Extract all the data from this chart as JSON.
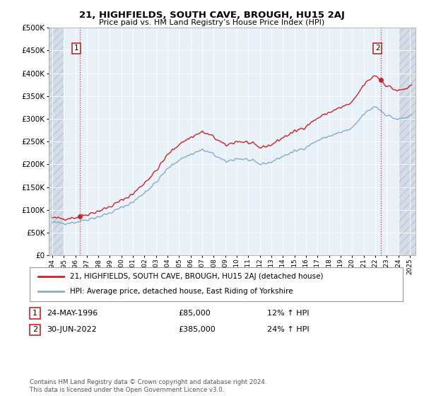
{
  "title": "21, HIGHFIELDS, SOUTH CAVE, BROUGH, HU15 2AJ",
  "subtitle": "Price paid vs. HM Land Registry’s House Price Index (HPI)",
  "ylim": [
    0,
    500000
  ],
  "yticks": [
    0,
    50000,
    100000,
    150000,
    200000,
    250000,
    300000,
    350000,
    400000,
    450000,
    500000
  ],
  "xlim_start": 1993.7,
  "xlim_end": 2025.5,
  "plot_bg": "#e8f0f8",
  "red_line_color": "#cc2222",
  "blue_line_color": "#88aacc",
  "purchase1": {
    "year": 1996.4,
    "price": 85000,
    "display": "24-MAY-1996",
    "price_str": "£85,000",
    "hpi_str": "12% ↑ HPI"
  },
  "purchase2": {
    "year": 2022.5,
    "price": 385000,
    "display": "30-JUN-2022",
    "price_str": "£385,000",
    "hpi_str": "24% ↑ HPI"
  },
  "legend_line1": "21, HIGHFIELDS, SOUTH CAVE, BROUGH, HU15 2AJ (detached house)",
  "legend_line2": "HPI: Average price, detached house, East Riding of Yorkshire",
  "footer": "Contains HM Land Registry data © Crown copyright and database right 2024.\nThis data is licensed under the Open Government Licence v3.0.",
  "hpi_monthly_years": [
    1994.0,
    1994.083,
    1994.167,
    1994.25,
    1994.333,
    1994.417,
    1994.5,
    1994.583,
    1994.667,
    1994.75,
    1994.833,
    1994.917,
    1995.0,
    1995.083,
    1995.167,
    1995.25,
    1995.333,
    1995.417,
    1995.5,
    1995.583,
    1995.667,
    1995.75,
    1995.833,
    1995.917,
    1996.0,
    1996.083,
    1996.167,
    1996.25,
    1996.333,
    1996.417,
    1996.5,
    1996.583,
    1996.667,
    1996.75,
    1996.833,
    1996.917,
    1997.0,
    1997.083,
    1997.167,
    1997.25,
    1997.333,
    1997.417,
    1997.5,
    1997.583,
    1997.667,
    1997.75,
    1997.833,
    1997.917,
    1998.0,
    1998.083,
    1998.167,
    1998.25,
    1998.333,
    1998.417,
    1998.5,
    1998.583,
    1998.667,
    1998.75,
    1998.833,
    1998.917,
    1999.0,
    1999.083,
    1999.167,
    1999.25,
    1999.333,
    1999.417,
    1999.5,
    1999.583,
    1999.667,
    1999.75,
    1999.833,
    1999.917,
    2000.0,
    2000.083,
    2000.167,
    2000.25,
    2000.333,
    2000.417,
    2000.5,
    2000.583,
    2000.667,
    2000.75,
    2000.833,
    2000.917,
    2001.0,
    2001.083,
    2001.167,
    2001.25,
    2001.333,
    2001.417,
    2001.5,
    2001.583,
    2001.667,
    2001.75,
    2001.833,
    2001.917,
    2002.0,
    2002.083,
    2002.167,
    2002.25,
    2002.333,
    2002.417,
    2002.5,
    2002.583,
    2002.667,
    2002.75,
    2002.833,
    2002.917,
    2003.0,
    2003.083,
    2003.167,
    2003.25,
    2003.333,
    2003.417,
    2003.5,
    2003.583,
    2003.667,
    2003.75,
    2003.833,
    2003.917,
    2004.0,
    2004.083,
    2004.167,
    2004.25,
    2004.333,
    2004.417,
    2004.5,
    2004.583,
    2004.667,
    2004.75,
    2004.833,
    2004.917,
    2005.0,
    2005.083,
    2005.167,
    2005.25,
    2005.333,
    2005.417,
    2005.5,
    2005.583,
    2005.667,
    2005.75,
    2005.833,
    2005.917,
    2006.0,
    2006.083,
    2006.167,
    2006.25,
    2006.333,
    2006.417,
    2006.5,
    2006.583,
    2006.667,
    2006.75,
    2006.833,
    2006.917,
    2007.0,
    2007.083,
    2007.167,
    2007.25,
    2007.333,
    2007.417,
    2007.5,
    2007.583,
    2007.667,
    2007.75,
    2007.833,
    2007.917,
    2008.0,
    2008.083,
    2008.167,
    2008.25,
    2008.333,
    2008.417,
    2008.5,
    2008.583,
    2008.667,
    2008.75,
    2008.833,
    2008.917,
    2009.0,
    2009.083,
    2009.167,
    2009.25,
    2009.333,
    2009.417,
    2009.5,
    2009.583,
    2009.667,
    2009.75,
    2009.833,
    2009.917,
    2010.0,
    2010.083,
    2010.167,
    2010.25,
    2010.333,
    2010.417,
    2010.5,
    2010.583,
    2010.667,
    2010.75,
    2010.833,
    2010.917,
    2011.0,
    2011.083,
    2011.167,
    2011.25,
    2011.333,
    2011.417,
    2011.5,
    2011.583,
    2011.667,
    2011.75,
    2011.833,
    2011.917,
    2012.0,
    2012.083,
    2012.167,
    2012.25,
    2012.333,
    2012.417,
    2012.5,
    2012.583,
    2012.667,
    2012.75,
    2012.833,
    2012.917,
    2013.0,
    2013.083,
    2013.167,
    2013.25,
    2013.333,
    2013.417,
    2013.5,
    2013.583,
    2013.667,
    2013.75,
    2013.833,
    2013.917,
    2014.0,
    2014.083,
    2014.167,
    2014.25,
    2014.333,
    2014.417,
    2014.5,
    2014.583,
    2014.667,
    2014.75,
    2014.833,
    2014.917,
    2015.0,
    2015.083,
    2015.167,
    2015.25,
    2015.333,
    2015.417,
    2015.5,
    2015.583,
    2015.667,
    2015.75,
    2015.833,
    2015.917,
    2016.0,
    2016.083,
    2016.167,
    2016.25,
    2016.333,
    2016.417,
    2016.5,
    2016.583,
    2016.667,
    2016.75,
    2016.833,
    2016.917,
    2017.0,
    2017.083,
    2017.167,
    2017.25,
    2017.333,
    2017.417,
    2017.5,
    2017.583,
    2017.667,
    2017.75,
    2017.833,
    2017.917,
    2018.0,
    2018.083,
    2018.167,
    2018.25,
    2018.333,
    2018.417,
    2018.5,
    2018.583,
    2018.667,
    2018.75,
    2018.833,
    2018.917,
    2019.0,
    2019.083,
    2019.167,
    2019.25,
    2019.333,
    2019.417,
    2019.5,
    2019.583,
    2019.667,
    2019.75,
    2019.833,
    2019.917,
    2020.0,
    2020.083,
    2020.167,
    2020.25,
    2020.333,
    2020.417,
    2020.5,
    2020.583,
    2020.667,
    2020.75,
    2020.833,
    2020.917,
    2021.0,
    2021.083,
    2021.167,
    2021.25,
    2021.333,
    2021.417,
    2021.5,
    2021.583,
    2021.667,
    2021.75,
    2021.833,
    2021.917,
    2022.0,
    2022.083,
    2022.167,
    2022.25,
    2022.333,
    2022.417,
    2022.5,
    2022.583,
    2022.667,
    2022.75,
    2022.833,
    2022.917,
    2023.0,
    2023.083,
    2023.167,
    2023.25,
    2023.333,
    2023.417,
    2023.5,
    2023.583,
    2023.667,
    2023.75,
    2023.833,
    2023.917,
    2024.0,
    2024.083,
    2024.167,
    2024.25,
    2024.333,
    2024.417,
    2024.5,
    2024.583,
    2024.667,
    2024.75,
    2024.833,
    2024.917,
    2025.0,
    2025.083,
    2025.167
  ],
  "hpi_annual": [
    1994,
    1995,
    1996,
    1997,
    1998,
    1999,
    2000,
    2001,
    2002,
    2003,
    2004,
    2005,
    2006,
    2007,
    2008,
    2009,
    2010,
    2011,
    2012,
    2013,
    2014,
    2015,
    2016,
    2017,
    2018,
    2019,
    2020,
    2021,
    2022,
    2023,
    2024,
    2025
  ],
  "hpi_values": [
    72000,
    71000,
    73000,
    79000,
    85000,
    93000,
    105000,
    117000,
    138000,
    160000,
    190000,
    210000,
    222000,
    232000,
    222000,
    205000,
    213000,
    210000,
    200000,
    205000,
    218000,
    228000,
    238000,
    252000,
    262000,
    270000,
    278000,
    310000,
    328000,
    308000,
    298000,
    305000
  ]
}
